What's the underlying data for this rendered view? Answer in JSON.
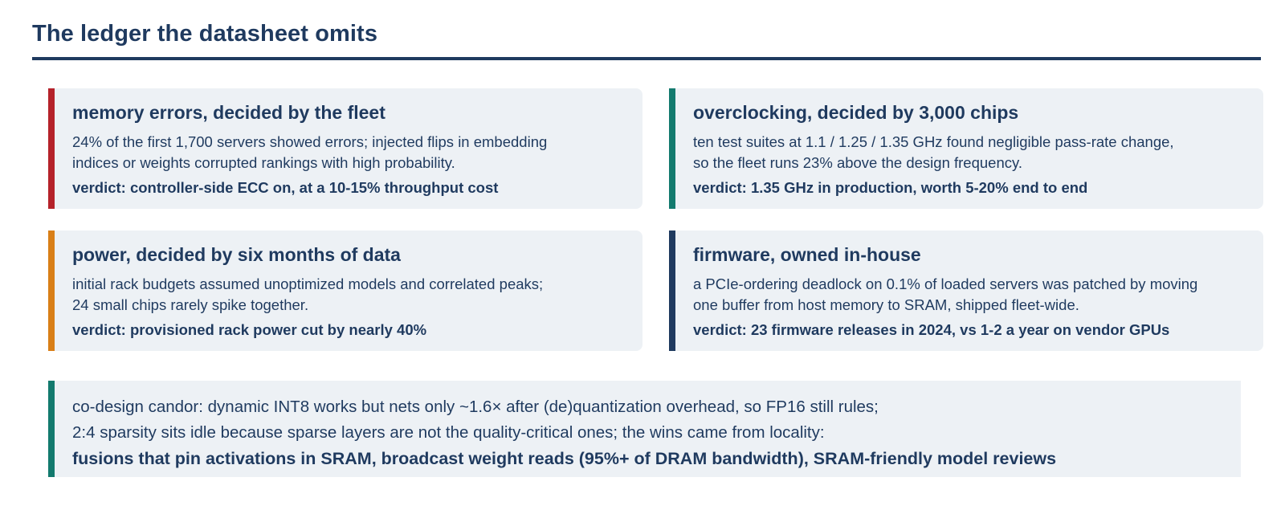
{
  "page": {
    "title": "The ledger the datasheet omits"
  },
  "colors": {
    "ink": "#1f3a5f",
    "panel": "#edf1f5",
    "accent_red": "#b5222a",
    "accent_teal": "#137a6e",
    "accent_orange": "#d97f17",
    "accent_navy": "#1f3a5f"
  },
  "cards": [
    {
      "title": "memory errors, decided by the fleet",
      "body": [
        "24% of the first 1,700 servers showed errors; injected flips in embedding",
        "indices or weights corrupted rankings with high probability."
      ],
      "verdict": "verdict: controller-side ECC on, at a 10-15% throughput cost",
      "accent": "#b5222a"
    },
    {
      "title": "overclocking, decided by 3,000 chips",
      "body": [
        "ten test suites at 1.1 / 1.25 / 1.35 GHz found negligible pass-rate change,",
        "so the fleet runs 23% above the design frequency."
      ],
      "verdict": "verdict: 1.35 GHz in production, worth 5-20% end to end",
      "accent": "#137a6e"
    },
    {
      "title": "power, decided by six months of data",
      "body": [
        "initial rack budgets assumed unoptimized models and correlated peaks;",
        "24 small chips rarely spike together."
      ],
      "verdict": "verdict: provisioned rack power cut by nearly 40%",
      "accent": "#d97f17"
    },
    {
      "title": "firmware, owned in-house",
      "body": [
        "a PCIe-ordering deadlock on 0.1% of loaded servers was patched by moving",
        "one buffer from host memory to SRAM, shipped fleet-wide."
      ],
      "verdict": "verdict: 23 firmware releases in 2024, vs 1-2 a year on vendor GPUs",
      "accent": "#1f3a5f"
    }
  ],
  "footer": {
    "line1": "co-design candor: dynamic INT8 works but nets only ~1.6× after (de)quantization overhead, so FP16 still rules;",
    "line2": "2:4 sparsity sits idle because sparse layers are not the quality-critical ones; the wins came from locality:",
    "line3": "fusions that pin activations in SRAM, broadcast weight reads (95%+ of DRAM bandwidth), SRAM-friendly model reviews",
    "accent": "#137a6e"
  }
}
